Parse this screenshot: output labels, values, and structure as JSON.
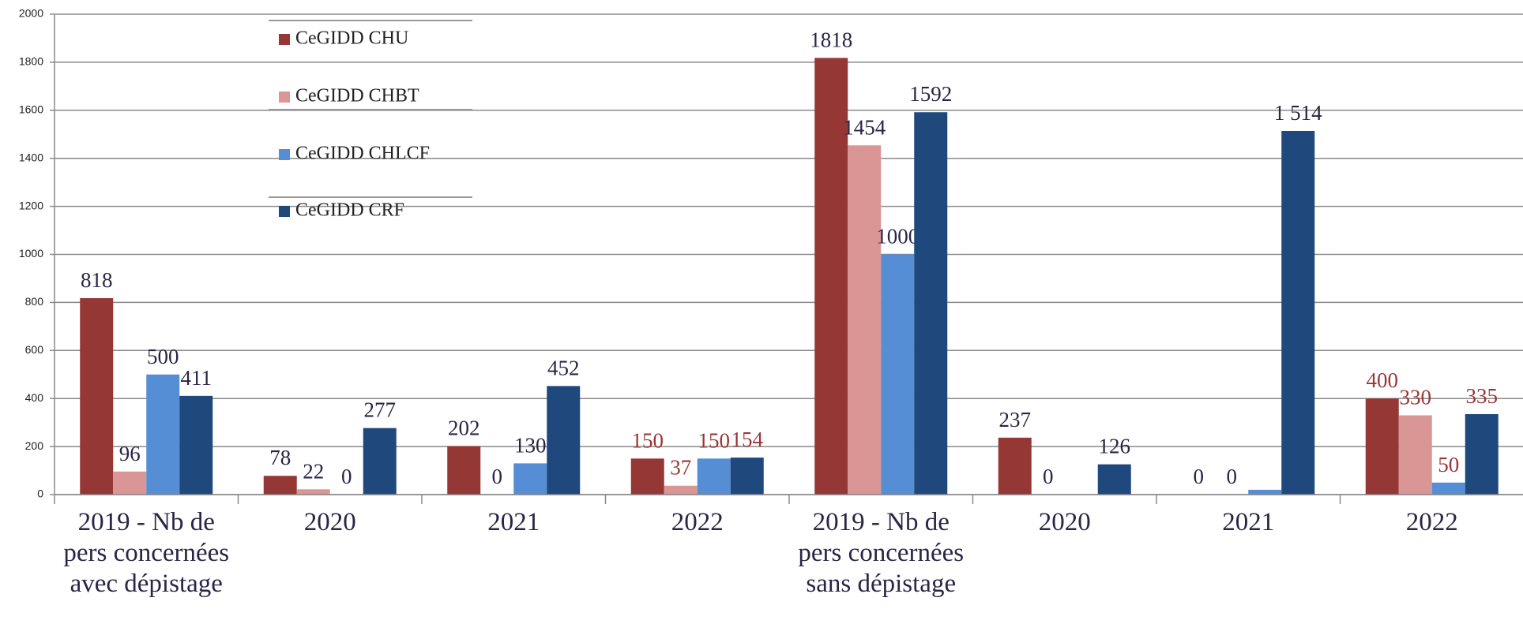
{
  "chart_data": {
    "type": "bar",
    "categories": [
      "2019 - Nb de pers concernées avec dépistage",
      "2020",
      "2021",
      "2022",
      "2019 - Nb de pers concernées sans dépistage",
      "2020",
      "2021",
      "2022"
    ],
    "series": [
      {
        "name": "CeGIDD CHU",
        "color": "#953735",
        "values": [
          818,
          78,
          202,
          150,
          1818,
          237,
          0,
          400
        ],
        "value_labels": [
          "818",
          "78",
          "202",
          "150",
          "1818",
          "237",
          "0",
          "400"
        ],
        "value_label_colors": [
          "#2b2545",
          "#2b2545",
          "#2b2545",
          "#9b3535",
          "#2b2545",
          "#2b2545",
          "#2b2545",
          "#9b3535"
        ]
      },
      {
        "name": "CeGIDD CHBT",
        "color": "#d99694",
        "values": [
          96,
          22,
          0,
          37,
          1454,
          0,
          0,
          330
        ],
        "value_labels": [
          "96",
          "22",
          "0",
          "37",
          "1454",
          "0",
          "0",
          "330"
        ],
        "value_label_colors": [
          "#2b2545",
          "#2b2545",
          "#2b2545",
          "#9b3535",
          "#2b2545",
          "#2b2545",
          "#2b2545",
          "#9b3535"
        ]
      },
      {
        "name": "CeGIDD CHLCF",
        "color": "#558ed5",
        "values": [
          500,
          0,
          130,
          150,
          1000,
          null,
          20,
          50
        ],
        "value_labels": [
          "500",
          "0",
          "130",
          "150",
          "1000",
          null,
          null,
          "50"
        ],
        "value_label_colors": [
          "#2b2545",
          "#2b2545",
          "#2b2545",
          "#9b3535",
          "#2b2545",
          "#2b2545",
          "#2b2545",
          "#9b3535"
        ]
      },
      {
        "name": "CeGIDD CRF",
        "color": "#1f497d",
        "values": [
          411,
          277,
          452,
          154,
          1592,
          126,
          1514,
          335
        ],
        "value_labels": [
          "411",
          "277",
          "452",
          "154",
          "1592",
          "126",
          "1 514",
          "335"
        ],
        "value_label_colors": [
          "#2b2545",
          "#2b2545",
          "#2b2545",
          "#9b3535",
          "#2b2545",
          "#2b2545",
          "#2b2545",
          "#9b3535"
        ]
      }
    ],
    "ylim": [
      0,
      2000
    ],
    "yticks": [
      0,
      200,
      400,
      600,
      800,
      1000,
      1200,
      1400,
      1600,
      1800,
      2000
    ],
    "grid": true,
    "legend": "top-left"
  }
}
